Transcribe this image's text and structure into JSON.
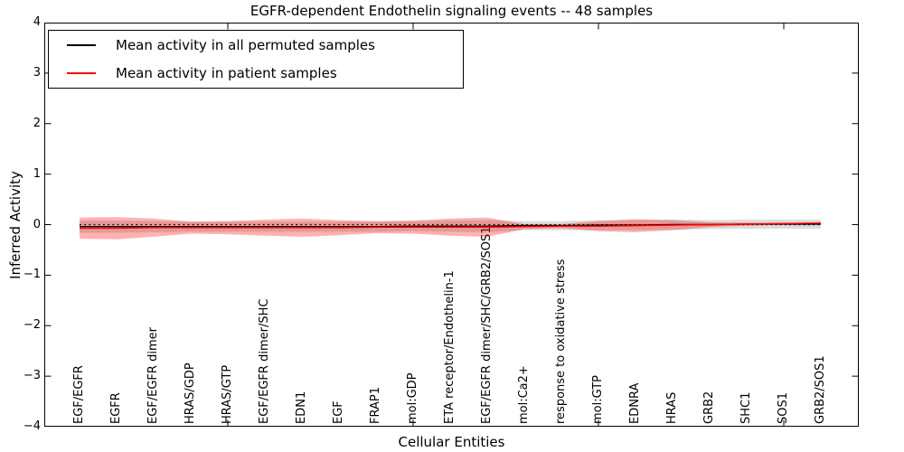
{
  "title": "EGFR-dependent Endothelin signaling events -- 48 samples",
  "axes": {
    "xlabel": "Cellular Entities",
    "ylabel": "Inferred Activity",
    "ytick_labels": [
      "4",
      "3",
      "2",
      "1",
      "0",
      "−1",
      "−2",
      "−3",
      "−4"
    ]
  },
  "legend": {
    "entries": [
      {
        "label": "Mean activity in all permuted samples",
        "color": "#000000"
      },
      {
        "label": "Mean activity in patient samples",
        "color": "#ff0000"
      }
    ]
  },
  "chart_data": {
    "type": "line",
    "title": "EGFR-dependent Endothelin signaling events -- 48 samples",
    "xlabel": "Cellular Entities",
    "ylabel": "Inferred Activity",
    "ylim": [
      -4,
      4
    ],
    "yticks": [
      -4,
      -3,
      -2,
      -1,
      0,
      1,
      2,
      3,
      4
    ],
    "x_major_tick_indices": [
      4,
      9,
      14,
      19
    ],
    "grid": false,
    "legend_position": "upper left",
    "zero_reference_line": {
      "y": 0,
      "style": "dotted",
      "color": "#000000"
    },
    "categories": [
      "EGF/EGFR",
      "EGFR",
      "EGF/EGFR dimer",
      "HRAS/GDP",
      "HRAS/GTP",
      "EGF/EGFR dimer/SHC",
      "EDN1",
      "EGF",
      "FRAP1",
      "mol:GDP",
      "ETA receptor/Endothelin-1",
      "EGF/EGFR dimer/SHC/GRB2/SOS1",
      "mol:Ca2+",
      "response to oxidative stress",
      "mol:GTP",
      "EDNRA",
      "HRAS",
      "GRB2",
      "SHC1",
      "SOS1",
      "GRB2/SOS1"
    ],
    "series": [
      {
        "name": "Mean activity in all permuted samples",
        "line_color": "#000000",
        "band_fill": "rgba(128,128,128,0.28)",
        "values": [
          -0.04,
          -0.04,
          -0.04,
          -0.04,
          -0.04,
          -0.04,
          -0.04,
          -0.04,
          -0.04,
          -0.03,
          -0.03,
          -0.03,
          -0.02,
          -0.02,
          -0.01,
          -0.01,
          0.0,
          0.0,
          0.01,
          0.01,
          0.01
        ],
        "band_hi": [
          0.08,
          0.08,
          0.07,
          0.06,
          0.06,
          0.06,
          0.06,
          0.06,
          0.06,
          0.07,
          0.08,
          0.09,
          0.07,
          0.07,
          0.09,
          0.09,
          0.1,
          0.09,
          0.1,
          0.1,
          0.1
        ],
        "band_lo": [
          -0.16,
          -0.16,
          -0.15,
          -0.14,
          -0.14,
          -0.14,
          -0.14,
          -0.14,
          -0.14,
          -0.13,
          -0.14,
          -0.15,
          -0.11,
          -0.11,
          -0.11,
          -0.11,
          -0.1,
          -0.09,
          -0.08,
          -0.08,
          -0.08
        ]
      },
      {
        "name": "Mean activity in patient samples",
        "line_color": "#ff0000",
        "band_fill": "rgba(255,0,0,0.30)",
        "values": [
          -0.07,
          -0.07,
          -0.06,
          -0.06,
          -0.06,
          -0.06,
          -0.06,
          -0.06,
          -0.05,
          -0.05,
          -0.05,
          -0.05,
          -0.04,
          -0.03,
          -0.03,
          -0.02,
          -0.01,
          0.0,
          0.01,
          0.02,
          0.03
        ],
        "band_hi": [
          0.14,
          0.15,
          0.12,
          0.06,
          0.07,
          0.1,
          0.12,
          0.09,
          0.07,
          0.08,
          0.12,
          0.14,
          0.01,
          0.01,
          0.07,
          0.11,
          0.09,
          0.05,
          0.04,
          0.04,
          0.05
        ],
        "band_lo": [
          -0.28,
          -0.29,
          -0.24,
          -0.18,
          -0.19,
          -0.22,
          -0.24,
          -0.21,
          -0.17,
          -0.18,
          -0.22,
          -0.24,
          -0.09,
          -0.07,
          -0.13,
          -0.15,
          -0.11,
          -0.05,
          -0.02,
          0.0,
          0.01
        ]
      }
    ]
  }
}
